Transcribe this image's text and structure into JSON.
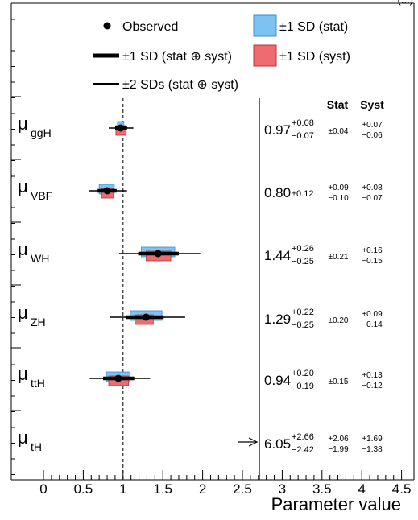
{
  "chart_data": {
    "type": "forest",
    "header_partial": "(...)",
    "xlabel": "Parameter value",
    "xlim": [
      0,
      4.5
    ],
    "x_ticks": [
      0,
      0.5,
      1,
      1.5,
      2,
      2.5,
      3,
      3.5,
      4,
      4.5
    ],
    "x_tick_labels": [
      "0",
      "0.5",
      "1",
      "1.5",
      "2",
      "2.5",
      "3",
      "3.5",
      "4",
      "4.5"
    ],
    "reference_line": 1,
    "column_headers": {
      "stat": "Stat",
      "syst": "Syst"
    },
    "legend": {
      "observed": "Observed",
      "one_sd": "±1 SD (stat ⊕ syst)",
      "two_sd": "±2 SDs (stat ⊕ syst)",
      "stat": "±1 SD (stat)",
      "syst": "±1 SD (syst)"
    },
    "colors": {
      "stat": "#7dc3f2",
      "stat_edge": "#3a8fd0",
      "syst": "#ef6b72",
      "syst_edge": "#b8323a"
    },
    "parameters": [
      {
        "label": "μ",
        "sub": "ggH",
        "value": 0.97,
        "value_text": "0.97",
        "tot_up": 0.08,
        "tot_dn": 0.07,
        "tot_up_text": "+0.08",
        "tot_dn_text": "−0.07",
        "stat_up": 0.04,
        "stat_dn": 0.04,
        "stat_text": "±0.04",
        "stat_up_text": "",
        "stat_dn_text": "",
        "syst_up": 0.07,
        "syst_dn": 0.06,
        "syst_up_text": "+0.07",
        "syst_dn_text": "−0.06",
        "two_up": 0.16,
        "two_dn": 0.15,
        "symmetric": false
      },
      {
        "label": "μ",
        "sub": "VBF",
        "value": 0.8,
        "value_text": "0.80",
        "tot_up": 0.12,
        "tot_dn": 0.12,
        "tot_sym_text": "±0.12",
        "stat_up": 0.09,
        "stat_dn": 0.1,
        "stat_text": "",
        "stat_up_text": "+0.09",
        "stat_dn_text": "−0.10",
        "syst_up": 0.08,
        "syst_dn": 0.07,
        "syst_up_text": "+0.08",
        "syst_dn_text": "−0.07",
        "two_up": 0.25,
        "two_dn": 0.23,
        "symmetric": true
      },
      {
        "label": "μ",
        "sub": "WH",
        "value": 1.44,
        "value_text": "1.44",
        "tot_up": 0.26,
        "tot_dn": 0.25,
        "tot_up_text": "+0.26",
        "tot_dn_text": "−0.25",
        "stat_up": 0.21,
        "stat_dn": 0.21,
        "stat_text": "±0.21",
        "stat_up_text": "",
        "stat_dn_text": "",
        "syst_up": 0.16,
        "syst_dn": 0.15,
        "syst_up_text": "+0.16",
        "syst_dn_text": "−0.15",
        "two_up": 0.53,
        "two_dn": 0.49,
        "symmetric": false
      },
      {
        "label": "μ",
        "sub": "ZH",
        "value": 1.29,
        "value_text": "1.29",
        "tot_up": 0.22,
        "tot_dn": 0.25,
        "tot_up_text": "+0.22",
        "tot_dn_text": "−0.25",
        "stat_up": 0.2,
        "stat_dn": 0.2,
        "stat_text": "±0.20",
        "stat_up_text": "",
        "stat_dn_text": "",
        "syst_up": 0.09,
        "syst_dn": 0.14,
        "syst_up_text": "+0.09",
        "syst_dn_text": "−0.14",
        "two_up": 0.49,
        "two_dn": 0.46,
        "symmetric": false
      },
      {
        "label": "μ",
        "sub": "ttH",
        "value": 0.94,
        "value_text": "0.94",
        "tot_up": 0.2,
        "tot_dn": 0.19,
        "tot_up_text": "+0.20",
        "tot_dn_text": "−0.19",
        "stat_up": 0.15,
        "stat_dn": 0.15,
        "stat_text": "±0.15",
        "stat_up_text": "",
        "stat_dn_text": "",
        "syst_up": 0.13,
        "syst_dn": 0.12,
        "syst_up_text": "+0.13",
        "syst_dn_text": "−0.12",
        "two_up": 0.4,
        "two_dn": 0.36,
        "symmetric": false
      },
      {
        "label": "μ",
        "sub": "tH",
        "value": 6.05,
        "value_text": "6.05",
        "tot_up": 2.66,
        "tot_dn": 2.42,
        "tot_up_text": "+2.66",
        "tot_dn_text": "−2.42",
        "stat_up": 2.06,
        "stat_dn": 1.99,
        "stat_text": "",
        "stat_up_text": "+2.06",
        "stat_dn_text": "−1.99",
        "syst_up": 1.69,
        "syst_dn": 1.38,
        "syst_up_text": "+1.69",
        "syst_dn_text": "−1.38",
        "two_up": 5.3,
        "two_dn": 4.8,
        "symmetric": false,
        "out_of_range": true
      }
    ]
  }
}
